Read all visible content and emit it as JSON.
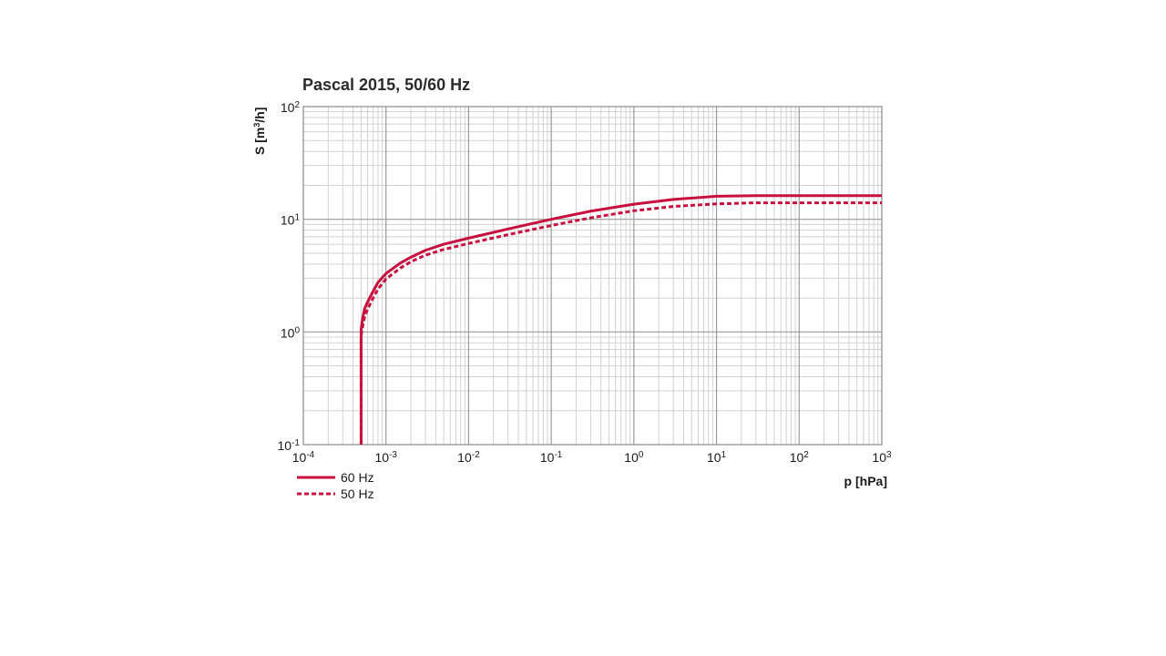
{
  "chart_data": {
    "type": "line",
    "title": "Pascal 2015, 50/60 Hz",
    "xlabel": "p [hPa]",
    "ylabel_main": "S [m",
    "ylabel_sup": "3",
    "ylabel_end": "/h]",
    "xscale": "log",
    "yscale": "log",
    "xlim": [
      0.0001,
      1000
    ],
    "ylim": [
      0.1,
      100
    ],
    "grid": true,
    "legend_position": "bottom-left",
    "x_ticks": [
      {
        "value": 0.0001,
        "base": "10",
        "exp": "-4"
      },
      {
        "value": 0.001,
        "base": "10",
        "exp": "-3"
      },
      {
        "value": 0.01,
        "base": "10",
        "exp": "-2"
      },
      {
        "value": 0.1,
        "base": "10",
        "exp": "-1"
      },
      {
        "value": 1,
        "base": "10",
        "exp": "0"
      },
      {
        "value": 10,
        "base": "10",
        "exp": "1"
      },
      {
        "value": 100,
        "base": "10",
        "exp": "2"
      },
      {
        "value": 1000,
        "base": "10",
        "exp": "3"
      }
    ],
    "y_ticks": [
      {
        "value": 0.1,
        "base": "10",
        "exp": "-1"
      },
      {
        "value": 1,
        "base": "10",
        "exp": "0"
      },
      {
        "value": 10,
        "base": "10",
        "exp": "1"
      },
      {
        "value": 100,
        "base": "10",
        "exp": "2"
      }
    ],
    "series": [
      {
        "name": "60 Hz",
        "style": "solid",
        "color": "#c8103e",
        "points": [
          [
            0.0005,
            0.1
          ],
          [
            0.0005,
            0.5
          ],
          [
            0.0005,
            1.05
          ],
          [
            0.00052,
            1.3
          ],
          [
            0.00055,
            1.6
          ],
          [
            0.0006,
            1.85
          ],
          [
            0.0007,
            2.3
          ],
          [
            0.0008,
            2.75
          ],
          [
            0.001,
            3.3
          ],
          [
            0.0015,
            4.1
          ],
          [
            0.002,
            4.6
          ],
          [
            0.003,
            5.3
          ],
          [
            0.005,
            6.0
          ],
          [
            0.01,
            6.8
          ],
          [
            0.03,
            8.2
          ],
          [
            0.1,
            10.0
          ],
          [
            0.3,
            11.8
          ],
          [
            1,
            13.6
          ],
          [
            3,
            15.0
          ],
          [
            10,
            16.0
          ],
          [
            30,
            16.2
          ],
          [
            100,
            16.2
          ],
          [
            1000,
            16.2
          ]
        ]
      },
      {
        "name": "50 Hz",
        "style": "dashed",
        "color": "#c8103e",
        "points": [
          [
            0.0005,
            0.1
          ],
          [
            0.0005,
            0.5
          ],
          [
            0.0005,
            0.92
          ],
          [
            0.00052,
            1.1
          ],
          [
            0.00055,
            1.35
          ],
          [
            0.0006,
            1.6
          ],
          [
            0.0007,
            2.0
          ],
          [
            0.0008,
            2.4
          ],
          [
            0.001,
            2.95
          ],
          [
            0.0015,
            3.7
          ],
          [
            0.002,
            4.2
          ],
          [
            0.003,
            4.8
          ],
          [
            0.005,
            5.4
          ],
          [
            0.01,
            6.1
          ],
          [
            0.03,
            7.3
          ],
          [
            0.1,
            8.8
          ],
          [
            0.3,
            10.3
          ],
          [
            1,
            11.9
          ],
          [
            3,
            13.0
          ],
          [
            10,
            13.7
          ],
          [
            30,
            14.0
          ],
          [
            100,
            14.0
          ],
          [
            1000,
            14.0
          ]
        ]
      }
    ]
  }
}
